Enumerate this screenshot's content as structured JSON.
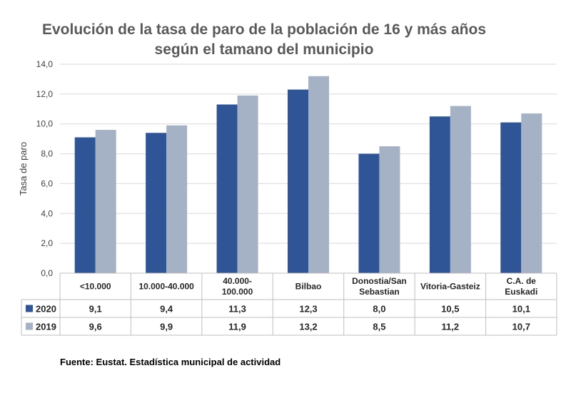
{
  "chart_data": {
    "type": "bar",
    "title": [
      "Evolución de la tasa de paro de la población de 16 y más años",
      "según el tamano del municipio"
    ],
    "xlabel": "",
    "ylabel": "Tasa de paro",
    "ylim": [
      0,
      14
    ],
    "yticks": [
      "0,0",
      "2,0",
      "4,0",
      "6,0",
      "8,0",
      "10,0",
      "12,0",
      "14,0"
    ],
    "ytick_values": [
      0,
      2,
      4,
      6,
      8,
      10,
      12,
      14
    ],
    "grid": true,
    "legend": "data-table",
    "categories": [
      [
        "<10.000"
      ],
      [
        "10.000-40.000"
      ],
      [
        "40.000-",
        "100.000"
      ],
      [
        "Bilbao"
      ],
      [
        "Donostia/San",
        "Sebastian"
      ],
      [
        "Vitoria-Gasteiz"
      ],
      [
        "C.A. de",
        "Euskadi"
      ]
    ],
    "series": [
      {
        "name": "2020",
        "color": "#2F5597",
        "values": [
          9.1,
          9.4,
          11.3,
          12.3,
          8.0,
          10.5,
          10.1
        ],
        "labels": [
          "9,1",
          "9,4",
          "11,3",
          "12,3",
          "8,0",
          "10,5",
          "10,1"
        ]
      },
      {
        "name": "2019",
        "color": "#A5B2C6",
        "values": [
          9.6,
          9.9,
          11.9,
          13.2,
          8.5,
          11.2,
          10.7
        ],
        "labels": [
          "9,6",
          "9,9",
          "11,9",
          "13,2",
          "8,5",
          "11,2",
          "10,7"
        ]
      }
    ]
  },
  "source": "Fuente: Eustat. Estadística municipal de actividad"
}
